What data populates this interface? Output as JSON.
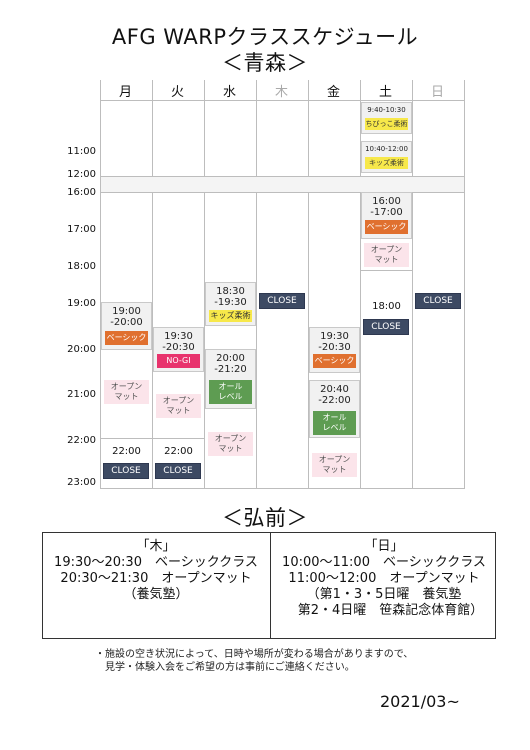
{
  "title": "AFG WARPクラススケジュール",
  "subtitle_aomori": "＜青森＞",
  "days": [
    "月",
    "火",
    "水",
    "木",
    "金",
    "土",
    "日"
  ],
  "morning_times": [
    "11:00",
    "12:00"
  ],
  "evening_times": [
    "16:00",
    "17:00",
    "18:00",
    "19:00",
    "20:00",
    "21:00",
    "22:00",
    "23:00"
  ],
  "mon": {
    "time1": "19:00",
    "time2": "-20:00",
    "class1": "ベーシック",
    "open_mat": "オープン\nマット",
    "time3": "22:00",
    "close": "CLOSE"
  },
  "tue": {
    "time1": "19:30",
    "time2": "-20:30",
    "class1": "NO-GI",
    "open_mat": "オープン\nマット",
    "time3": "22:00",
    "close": "CLOSE"
  },
  "wed": {
    "time1": "18:30",
    "time2": "-19:30",
    "class1": "キッズ柔術",
    "time3": "20:00",
    "time4": "-21:20",
    "class2": "オール\nレベル",
    "open_mat": "オープン\nマット"
  },
  "thu": {
    "close": "CLOSE"
  },
  "fri": {
    "time1": "19:30",
    "time2": "-20:30",
    "class1": "ベーシック",
    "time3": "20:40",
    "time4": "-22:00",
    "class2": "オール\nレベル",
    "open_mat": "オープン\nマット"
  },
  "sat": {
    "m1_time": "9:40-10:30",
    "m1_class": "ちびっこ柔術",
    "m2_time": "10:40-12:00",
    "m2_class": "キッズ柔術",
    "time1": "16:00",
    "time2": "-17:00",
    "class1": "ベーシック",
    "open_mat": "オープン\nマット",
    "time3": "18:00",
    "close": "CLOSE"
  },
  "sun": {
    "close": "CLOSE"
  },
  "subtitle_hirosaki": "＜弘前＞",
  "hirosaki": {
    "thu": "「木」\n19:30〜20:30　ベーシッククラス\n20:30〜21:30　オープンマット\n（養気塾）",
    "sun": "「日」\n10:00〜11:00　ベーシッククラス\n11:00〜12:00　オープンマット\n（第1・3・5日曜　養気塾\n　第2・4日曜　笹森記念体育館）"
  },
  "notes": [
    "・施設の空き状況によって、日時や場所が変わる場合がありますので、",
    "　見学・体験入会をご希望の方は事前にご連絡ください。"
  ],
  "date": "2021/03~",
  "colors": {
    "orange": "#e0702f",
    "yellow": "#f7e84a",
    "pink": "#e8336d",
    "green": "#5e9c52",
    "navy": "#3d4a63",
    "open_mat_bg": "#fbe4ea"
  }
}
